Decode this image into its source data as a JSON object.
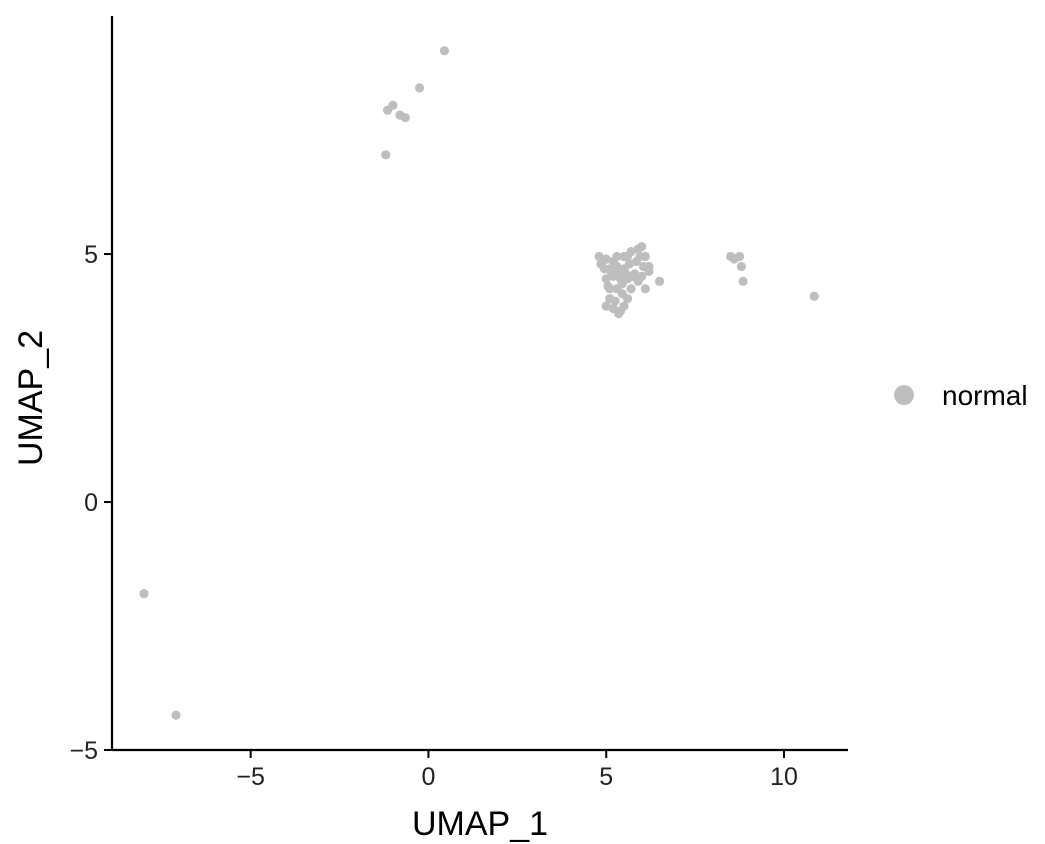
{
  "chart_data": {
    "type": "scatter",
    "title": "",
    "xlabel": "UMAP_1",
    "ylabel": "UMAP_2",
    "xlim": [
      -8.9,
      11.8
    ],
    "ylim": [
      -5,
      9.8
    ],
    "xticks": [
      -5,
      0,
      5,
      10
    ],
    "xtick_labels": [
      "−5",
      "0",
      "5",
      "10"
    ],
    "yticks": [
      -5,
      0,
      5
    ],
    "ytick_labels": [
      "−5",
      "0",
      "5"
    ],
    "grid": false,
    "legend_position": "right",
    "series": [
      {
        "name": "normal",
        "color": "#bebebe",
        "points": [
          [
            0.45,
            9.1
          ],
          [
            -0.25,
            8.35
          ],
          [
            -1.0,
            8.0
          ],
          [
            -1.15,
            7.9
          ],
          [
            -0.8,
            7.8
          ],
          [
            -0.65,
            7.75
          ],
          [
            -1.2,
            7.0
          ],
          [
            8.5,
            4.95
          ],
          [
            8.6,
            4.9
          ],
          [
            8.75,
            4.95
          ],
          [
            8.8,
            4.75
          ],
          [
            8.85,
            4.45
          ],
          [
            10.85,
            4.15
          ],
          [
            6.5,
            4.45
          ],
          [
            -8.0,
            -1.85
          ],
          [
            -7.1,
            -4.3
          ],
          [
            4.8,
            4.95
          ],
          [
            5.0,
            4.9
          ],
          [
            5.2,
            4.85
          ],
          [
            5.5,
            4.95
          ],
          [
            5.7,
            5.05
          ],
          [
            5.9,
            5.1
          ],
          [
            6.0,
            5.15
          ],
          [
            6.1,
            4.95
          ],
          [
            6.05,
            4.75
          ],
          [
            6.2,
            4.65
          ],
          [
            6.0,
            4.55
          ],
          [
            5.8,
            4.6
          ],
          [
            5.5,
            4.7
          ],
          [
            5.3,
            4.75
          ],
          [
            5.1,
            4.7
          ],
          [
            4.95,
            4.7
          ],
          [
            4.9,
            4.85
          ],
          [
            5.0,
            4.5
          ],
          [
            5.1,
            4.3
          ],
          [
            5.1,
            4.1
          ],
          [
            5.0,
            3.95
          ],
          [
            5.2,
            3.9
          ],
          [
            5.4,
            3.85
          ],
          [
            5.35,
            3.8
          ],
          [
            5.5,
            3.95
          ],
          [
            5.6,
            4.1
          ],
          [
            5.7,
            4.3
          ],
          [
            5.9,
            4.45
          ],
          [
            6.1,
            4.3
          ],
          [
            5.6,
            4.5
          ],
          [
            5.4,
            4.5
          ],
          [
            5.3,
            4.3
          ],
          [
            5.2,
            4.55
          ],
          [
            5.45,
            4.2
          ],
          [
            5.55,
            4.6
          ],
          [
            5.65,
            4.8
          ],
          [
            5.25,
            4.05
          ],
          [
            5.15,
            4.6
          ],
          [
            5.35,
            4.65
          ],
          [
            5.45,
            4.4
          ],
          [
            5.75,
            4.55
          ],
          [
            5.85,
            4.85
          ],
          [
            6.2,
            4.75
          ],
          [
            5.05,
            4.35
          ],
          [
            5.3,
            4.95
          ],
          [
            5.6,
            4.95
          ],
          [
            5.95,
            4.95
          ],
          [
            4.85,
            4.8
          ]
        ]
      }
    ]
  }
}
